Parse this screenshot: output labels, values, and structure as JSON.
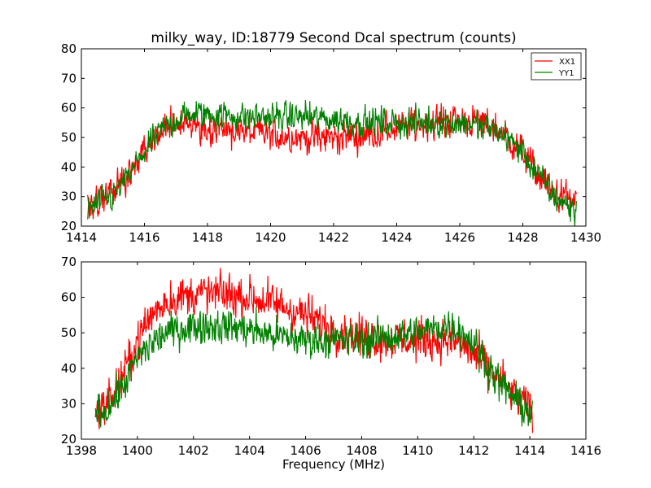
{
  "title": "milky_way, ID:18779 Second Dcal spectrum (counts)",
  "colors": {
    "XX1": "#ff0000",
    "YY1": "#008000"
  },
  "chart_data": [
    {
      "type": "line",
      "xlim": [
        1414,
        1430
      ],
      "ylim": [
        20,
        80
      ],
      "xticks": [
        1414,
        1416,
        1418,
        1420,
        1422,
        1424,
        1426,
        1428,
        1430
      ],
      "yticks": [
        20,
        30,
        40,
        50,
        60,
        70,
        80
      ],
      "xlabel": "",
      "ylabel": "",
      "legend": {
        "placement": "top-right",
        "entries": [
          "XX1",
          "YY1"
        ]
      },
      "x_range": [
        1414.2,
        1429.7
      ],
      "series": [
        {
          "name": "XX1",
          "color": "#ff0000",
          "envelope_x": [
            1414.2,
            1415.0,
            1415.5,
            1416.0,
            1416.5,
            1417.0,
            1417.5,
            1418.0,
            1419.0,
            1420.0,
            1421.0,
            1422.0,
            1423.0,
            1424.0,
            1425.0,
            1426.0,
            1427.0,
            1427.5,
            1428.0,
            1428.5,
            1429.0,
            1429.7
          ],
          "envelope_y": [
            27,
            31,
            38,
            45,
            51,
            55,
            55,
            53,
            52,
            51,
            50,
            50,
            51,
            53,
            55,
            56,
            54,
            50,
            45,
            37,
            31,
            28
          ],
          "noise": 3.5
        },
        {
          "name": "YY1",
          "color": "#008000",
          "envelope_x": [
            1414.2,
            1415.0,
            1415.5,
            1416.0,
            1416.5,
            1417.0,
            1417.5,
            1418.0,
            1419.0,
            1420.0,
            1421.0,
            1422.0,
            1423.0,
            1424.0,
            1425.0,
            1426.0,
            1427.0,
            1427.5,
            1428.0,
            1428.5,
            1429.0,
            1429.7
          ],
          "envelope_y": [
            26,
            30,
            37,
            45,
            52,
            56,
            58,
            58,
            57,
            57,
            57,
            56,
            55,
            55,
            55,
            55,
            53,
            50,
            45,
            37,
            30,
            25
          ],
          "noise": 3.0
        }
      ]
    },
    {
      "type": "line",
      "xlim": [
        1398,
        1416
      ],
      "ylim": [
        20,
        70
      ],
      "xticks": [
        1398,
        1400,
        1402,
        1404,
        1406,
        1408,
        1410,
        1412,
        1414,
        1416
      ],
      "yticks": [
        20,
        30,
        40,
        50,
        60,
        70
      ],
      "xlabel": "Frequency (MHz)",
      "ylabel": "",
      "x_range": [
        1398.5,
        1414.1
      ],
      "series": [
        {
          "name": "XX1",
          "color": "#ff0000",
          "envelope_x": [
            1398.5,
            1399.0,
            1399.5,
            1400.0,
            1400.5,
            1401.0,
            1402.0,
            1403.0,
            1404.0,
            1405.0,
            1406.0,
            1407.0,
            1408.0,
            1409.0,
            1410.0,
            1411.0,
            1411.5,
            1412.0,
            1412.5,
            1413.0,
            1413.5,
            1414.1
          ],
          "envelope_y": [
            28,
            31,
            38,
            48,
            55,
            59,
            61,
            61,
            60,
            58,
            55,
            51,
            49,
            48,
            48,
            48,
            47,
            44,
            40,
            36,
            32,
            28
          ],
          "noise": 3.5
        },
        {
          "name": "YY1",
          "color": "#008000",
          "envelope_x": [
            1398.5,
            1399.0,
            1399.5,
            1400.0,
            1400.5,
            1401.0,
            1402.0,
            1403.0,
            1404.0,
            1405.0,
            1406.0,
            1407.0,
            1408.0,
            1409.0,
            1410.0,
            1411.0,
            1411.5,
            1412.0,
            1412.5,
            1413.0,
            1413.5,
            1414.1
          ],
          "envelope_y": [
            27,
            29,
            35,
            43,
            47,
            50,
            52,
            52,
            51,
            49,
            48,
            48,
            48,
            49,
            50,
            52,
            51,
            47,
            41,
            35,
            31,
            27
          ],
          "noise": 3.0
        }
      ]
    }
  ]
}
